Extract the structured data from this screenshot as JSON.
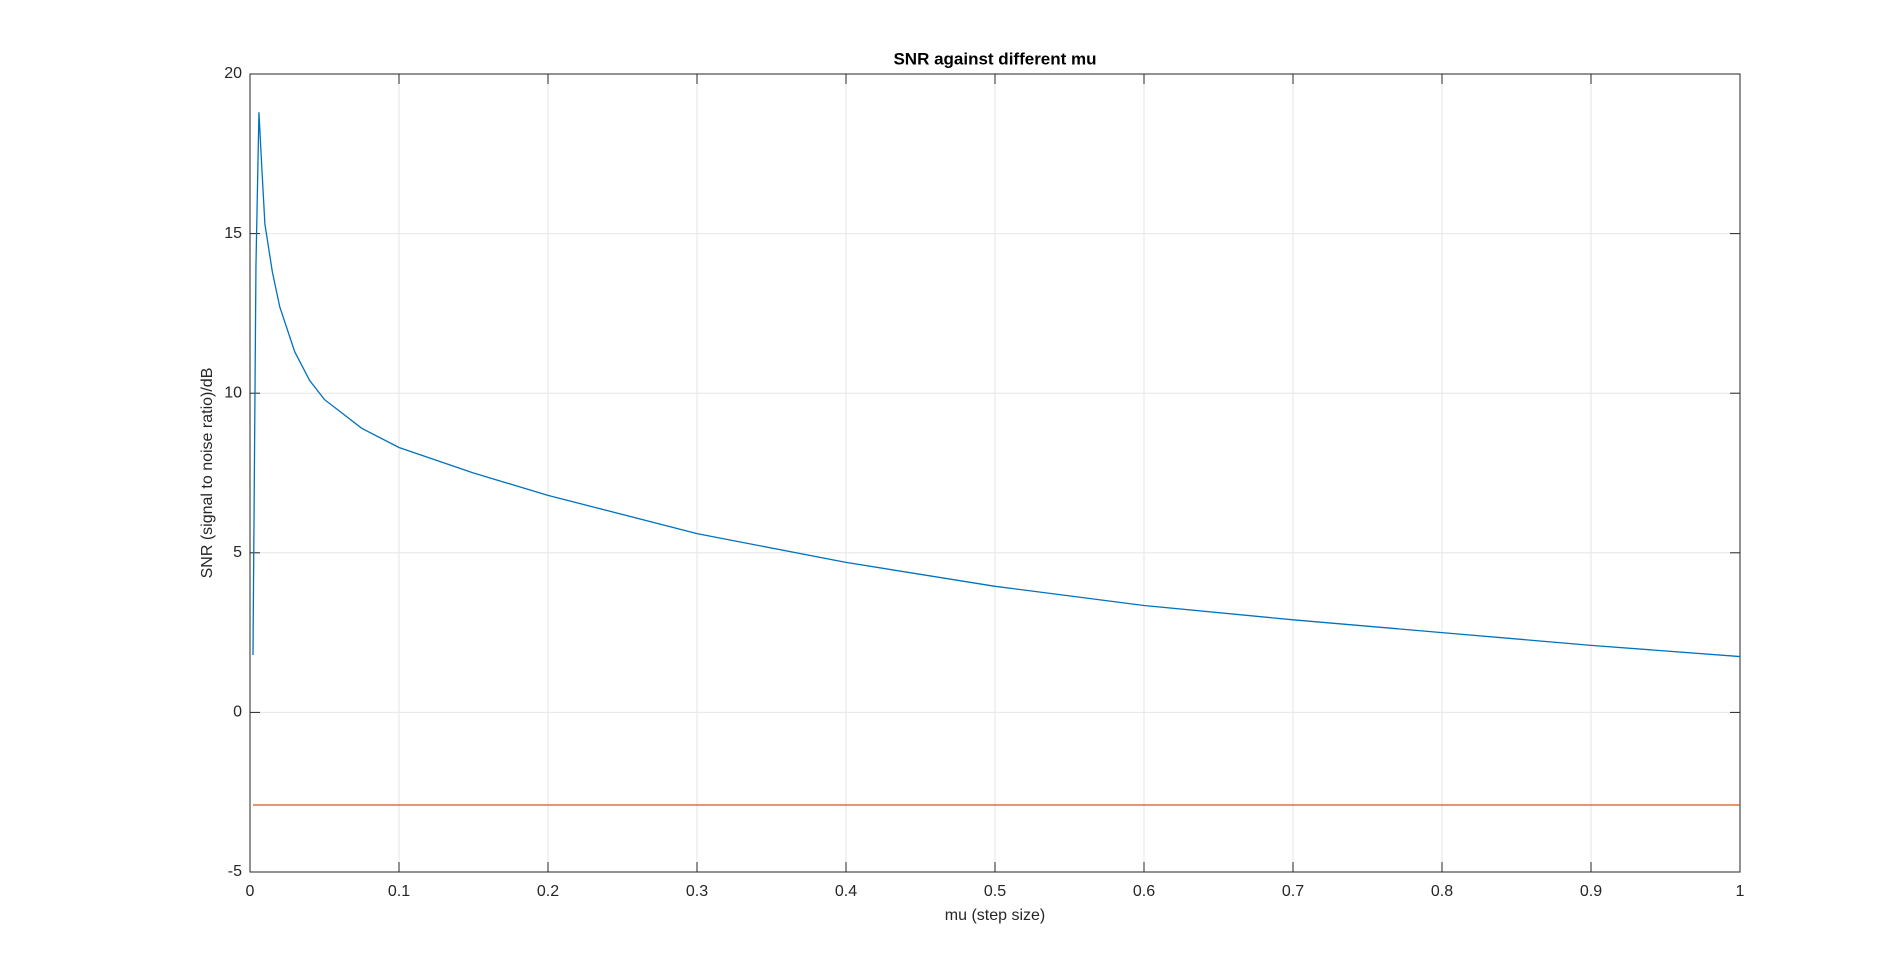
{
  "chart_data": {
    "type": "line",
    "title": "SNR against different mu",
    "x_label": "mu (step size)",
    "y_label": "SNR (signal to noise ratio)/dB",
    "xlim": [
      0,
      1
    ],
    "ylim": [
      -5,
      20
    ],
    "xticks": [
      0,
      0.1,
      0.2,
      0.3,
      0.4,
      0.5,
      0.6,
      0.7,
      0.8,
      0.9,
      1
    ],
    "yticks": [
      -5,
      0,
      5,
      10,
      15,
      20
    ],
    "grid": true,
    "series": [
      {
        "color": "#0072bd",
        "x": [
          0.002,
          0.004,
          0.006,
          0.008,
          0.01,
          0.015,
          0.02,
          0.03,
          0.04,
          0.05,
          0.075,
          0.1,
          0.15,
          0.2,
          0.3,
          0.4,
          0.5,
          0.6,
          0.7,
          0.8,
          0.9,
          1
        ],
        "values": [
          1.8,
          14,
          18.8,
          17,
          15.3,
          13.8,
          12.7,
          11.3,
          10.4,
          9.8,
          8.9,
          8.3,
          7.5,
          6.8,
          5.6,
          4.7,
          3.95,
          3.35,
          2.9,
          2.5,
          2.1,
          1.75
        ]
      },
      {
        "color": "#d95319",
        "x": [
          0.002,
          1
        ],
        "values": [
          -2.9,
          -2.9
        ]
      }
    ]
  }
}
